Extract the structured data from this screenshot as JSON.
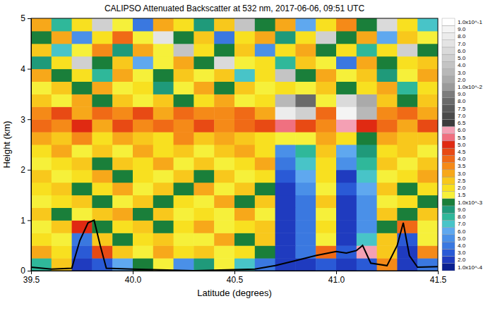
{
  "chart_data": {
    "type": "heatmap",
    "title": "CALIPSO Attenuated Backscatter at 532 nm, 2017-06-06, 09:51 UTC",
    "x_label": "Latitude (degrees)",
    "y_label": "Height (km)",
    "xlim": [
      39.5,
      41.5
    ],
    "xticks": [
      39.5,
      {
        "value": 40.0,
        "label": "40.0"
      },
      40.5,
      {
        "value": 41.0,
        "label": "41.0"
      },
      41.5
    ],
    "ylim": [
      0,
      5
    ],
    "yticks": [
      0,
      1,
      2,
      3,
      4,
      5
    ],
    "x_edges": [
      39.5,
      39.6,
      39.7,
      39.8,
      39.9,
      40.0,
      40.1,
      40.2,
      40.3,
      40.4,
      40.5,
      40.6,
      40.7,
      40.8,
      40.9,
      41.0,
      41.1,
      41.2,
      41.3,
      41.4,
      41.5
    ],
    "y_edges": [
      0,
      0.25,
      0.5,
      0.75,
      1.0,
      1.25,
      1.5,
      1.75,
      2.0,
      2.25,
      2.5,
      2.75,
      3.0,
      3.25,
      3.5,
      3.75,
      4.0,
      4.25,
      4.5,
      4.75,
      5.0
    ],
    "cells": [
      [
        0.0008,
        0.0025,
        0.0002,
        0.0003,
        0.0006,
        0.0012,
        0.0018,
        0.0005,
        0.0009,
        0.0015,
        0.0007,
        0.0004,
        0.0002,
        0.0002,
        0.0003,
        0.0002,
        0.0003,
        0.0035,
        0.0002,
        0.0004
      ],
      [
        0.0031,
        0.0022,
        0.0003,
        0.0045,
        0.0027,
        0.0016,
        0.0033,
        0.0021,
        0.0028,
        0.0019,
        0.0024,
        0.0012,
        0.0002,
        0.0004,
        0.004,
        0.0003,
        0.006,
        0.0026,
        0.0002,
        0.0035
      ],
      [
        0.0024,
        0.0017,
        0.0004,
        0.0029,
        0.0013,
        0.0021,
        0.0027,
        0.0015,
        0.0018,
        0.0032,
        0.0014,
        0.0025,
        0.0002,
        0.0004,
        0.0019,
        0.0002,
        0.0007,
        0.0028,
        0.0003,
        0.0016
      ],
      [
        0.0019,
        0.0026,
        0.005,
        0.0014,
        0.0022,
        0.0028,
        0.0011,
        0.0024,
        0.0033,
        0.0017,
        0.0021,
        0.0029,
        0.0002,
        0.0004,
        0.0023,
        0.0002,
        0.0005,
        0.0012,
        0.004,
        0.0018
      ],
      [
        0.0029,
        0.0012,
        0.0018,
        0.0025,
        0.0033,
        0.0013,
        0.0028,
        0.0019,
        0.0024,
        0.0015,
        0.0031,
        0.0017,
        0.0002,
        0.0004,
        0.0016,
        0.0002,
        0.0005,
        0.0025,
        0.0011,
        0.0027
      ],
      [
        0.0015,
        0.0022,
        0.0027,
        0.0012,
        0.0019,
        0.0029,
        0.0014,
        0.0023,
        0.0017,
        0.0031,
        0.0011,
        0.0026,
        0.0002,
        0.0004,
        0.0028,
        0.0002,
        0.0005,
        0.0018,
        0.0024,
        0.0014
      ],
      [
        0.0021,
        0.0028,
        0.0013,
        0.0024,
        0.003,
        0.0016,
        0.0026,
        0.0011,
        0.0032,
        0.0018,
        0.0025,
        0.0014,
        0.0002,
        0.0005,
        0.0019,
        0.0003,
        0.0006,
        0.0027,
        0.0013,
        0.0022
      ],
      [
        0.0026,
        0.0015,
        0.0021,
        0.0031,
        0.0012,
        0.0024,
        0.0017,
        0.0029,
        0.0014,
        0.0027,
        0.0019,
        0.0023,
        0.0003,
        0.0006,
        0.0024,
        0.0002,
        0.0007,
        0.0016,
        0.0022,
        0.0031
      ],
      [
        0.0018,
        0.0023,
        0.0029,
        0.0014,
        0.0027,
        0.0021,
        0.0032,
        0.0016,
        0.0025,
        0.0019,
        0.0022,
        0.003,
        0.0004,
        0.0007,
        0.0021,
        0.0005,
        0.0008,
        0.0028,
        0.0015,
        0.0026
      ],
      [
        0.0024,
        0.0032,
        0.0019,
        0.0028,
        0.0016,
        0.0034,
        0.0021,
        0.0027,
        0.0018,
        0.0025,
        0.0033,
        0.002,
        0.0005,
        0.0008,
        0.0026,
        0.0006,
        0.0009,
        0.0022,
        0.0029,
        0.0017
      ],
      [
        0.0031,
        0.0027,
        0.0036,
        0.0022,
        0.0033,
        0.0029,
        0.0024,
        0.0035,
        0.0026,
        0.0032,
        0.0028,
        0.0023,
        0.0018,
        0.0016,
        0.003,
        0.002,
        0.0012,
        0.0034,
        0.0025,
        0.0029
      ],
      [
        0.0042,
        0.0036,
        0.005,
        0.0033,
        0.0046,
        0.0039,
        0.0044,
        0.0035,
        0.0048,
        0.0037,
        0.0041,
        0.0045,
        0.0055,
        0.0045,
        0.0038,
        0.006,
        0.005,
        0.004,
        0.0034,
        0.0047
      ],
      [
        0.0038,
        0.0045,
        0.0032,
        0.0041,
        0.0035,
        0.0048,
        0.0031,
        0.0044,
        0.0036,
        0.0039,
        0.0042,
        0.0034,
        0.08,
        0.05,
        0.004,
        0.09,
        0.03,
        0.0037,
        0.0043,
        0.0033
      ],
      [
        0.0027,
        0.0015,
        0.0033,
        0.0012,
        0.0025,
        0.0019,
        0.0029,
        0.0014,
        0.0022,
        0.0031,
        0.0017,
        0.0024,
        0.03,
        0.008,
        0.0018,
        0.06,
        0.02,
        0.0026,
        0.0013,
        0.0028
      ],
      [
        0.0016,
        0.0028,
        0.0011,
        0.0032,
        0.0019,
        0.0024,
        0.0009,
        0.0017,
        0.003,
        0.0013,
        0.0026,
        0.0018,
        0.0021,
        0.0015,
        0.0029,
        0.0012,
        0.0023,
        0.0034,
        0.0008,
        0.002
      ],
      [
        0.003,
        0.0013,
        0.0024,
        0.0008,
        0.0034,
        0.0019,
        0.0011,
        0.0026,
        0.0016,
        0.0029,
        0.0007,
        0.0021,
        0.04,
        0.0014,
        0.0031,
        0.0018,
        0.0025,
        0.0009,
        0.0017,
        0.0032
      ],
      [
        0.0009,
        0.0022,
        0.05,
        0.0014,
        0.0026,
        0.0006,
        0.0019,
        0.0031,
        0.0011,
        0.06,
        0.0017,
        0.0023,
        0.0008,
        0.0027,
        0.0015,
        0.0004,
        0.0033,
        0.0012,
        0.002,
        0.0029
      ],
      [
        0.0025,
        0.0007,
        0.0018,
        0.0035,
        0.0009,
        0.003,
        0.0016,
        0.04,
        0.002,
        0.0012,
        0.0028,
        0.0005,
        0.002,
        0.0032,
        0.0011,
        0.0024,
        0.0008,
        0.0021,
        0.05,
        0.0013
      ],
      [
        0.0012,
        0.003,
        0.0005,
        0.002,
        0.004,
        0.0015,
        0.07,
        0.001,
        0.0025,
        0.0004,
        0.002,
        0.003,
        0.0009,
        0.0022,
        0.05,
        0.0014,
        0.003,
        0.0006,
        0.0028,
        0.0018
      ],
      [
        0.003,
        0.0008,
        0.002,
        0.05,
        0.0015,
        0.0004,
        0.003,
        0.002,
        0.0009,
        0.0025,
        0.04,
        0.0012,
        0.003,
        0.0006,
        0.002,
        0.0035,
        0.001,
        0.06,
        0.002,
        0.0007
      ]
    ],
    "series": [
      {
        "type": "line",
        "color": "#000000",
        "x": [
          39.5,
          39.6,
          39.7,
          39.74,
          39.78,
          39.81,
          39.84,
          39.87,
          40.0,
          40.3,
          40.6,
          40.7,
          40.8,
          40.9,
          41.0,
          41.05,
          41.1,
          41.13,
          41.17,
          41.25,
          41.3,
          41.33,
          41.36,
          41.4,
          41.5
        ],
        "values": [
          0.07,
          0.03,
          0.05,
          0.6,
          0.95,
          1.0,
          0.5,
          0.05,
          0.03,
          0.0,
          0.03,
          0.1,
          0.2,
          0.3,
          0.38,
          0.35,
          0.4,
          0.5,
          0.15,
          0.1,
          0.5,
          0.95,
          0.3,
          0.07,
          0.08
        ]
      }
    ],
    "colorbar": {
      "range": [
        0.0001,
        0.1
      ],
      "ticks": [
        {
          "value": 0.0001,
          "label": "1.0x10^-4"
        },
        {
          "value": 0.0002,
          "label": "2.0"
        },
        {
          "value": 0.0003,
          "label": "3.0"
        },
        {
          "value": 0.0004,
          "label": "4.0"
        },
        {
          "value": 0.0005,
          "label": "5.0"
        },
        {
          "value": 0.0006,
          "label": "6.0"
        },
        {
          "value": 0.0007,
          "label": "7.0"
        },
        {
          "value": 0.0008,
          "label": "8.0"
        },
        {
          "value": 0.0009,
          "label": "9.0"
        },
        {
          "value": 0.001,
          "label": "1.0x10^-3"
        },
        {
          "value": 0.0015,
          "label": "1.5"
        },
        {
          "value": 0.002,
          "label": "2.0"
        },
        {
          "value": 0.0025,
          "label": "2.5"
        },
        {
          "value": 0.003,
          "label": "3.0"
        },
        {
          "value": 0.0035,
          "label": "3.5"
        },
        {
          "value": 0.004,
          "label": "4.0"
        },
        {
          "value": 0.0045,
          "label": "4.5"
        },
        {
          "value": 0.005,
          "label": "5.0"
        },
        {
          "value": 0.0055,
          "label": "5.5"
        },
        {
          "value": 0.006,
          "label": "6.0"
        },
        {
          "value": 0.0065,
          "label": "6.5"
        },
        {
          "value": 0.007,
          "label": "7.0"
        },
        {
          "value": 0.0075,
          "label": "7.5"
        },
        {
          "value": 0.008,
          "label": "8.0"
        },
        {
          "value": 0.009,
          "label": "9.0"
        },
        {
          "value": 0.01,
          "label": "1.0x10^-2"
        },
        {
          "value": 0.02,
          "label": "2.0"
        },
        {
          "value": 0.03,
          "label": "3.0"
        },
        {
          "value": 0.04,
          "label": "4.0"
        },
        {
          "value": 0.05,
          "label": "5.0"
        },
        {
          "value": 0.06,
          "label": "6.0"
        },
        {
          "value": 0.07,
          "label": "7.0"
        },
        {
          "value": 0.08,
          "label": "8.0"
        },
        {
          "value": 0.09,
          "label": "9.0"
        },
        {
          "value": 0.1,
          "label": "1.0x10^-1"
        }
      ],
      "colors": [
        "#0a1f8f",
        "#1f3bbf",
        "#2a5ad6",
        "#3a78e0",
        "#4a90e8",
        "#5fa8ef",
        "#48c4c8",
        "#2fb89a",
        "#1f9a7a",
        "#1a7f3a",
        "#f6f03a",
        "#f8e020",
        "#f8c81c",
        "#f7a81a",
        "#f58a18",
        "#f06a16",
        "#e84a14",
        "#e02a12",
        "#f07080",
        "#f4a0b4",
        "#3c3c3c",
        "#4a4a4a",
        "#5a5a5a",
        "#6a6a6a",
        "#7c7c7c",
        "#9a9a9a",
        "#aaaaaa",
        "#b8b8b8",
        "#c4c4c4",
        "#d0d0d0",
        "#dadada",
        "#e4e4e4",
        "#ececec",
        "#f4f4f4",
        "#ffffff"
      ]
    }
  }
}
